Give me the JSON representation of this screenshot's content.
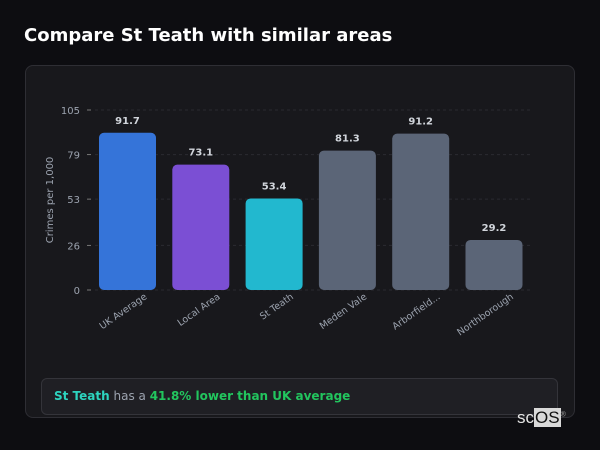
{
  "title": "Compare St Teath with similar areas",
  "chart_data": {
    "type": "bar",
    "categories": [
      "UK Average",
      "Local Area",
      "St Teath",
      "Meden Vale",
      "Arborfield...",
      "Northborough"
    ],
    "values": [
      91.7,
      73.1,
      53.4,
      81.3,
      91.2,
      29.2
    ],
    "colors": [
      "#3574d9",
      "#7b4fd4",
      "#22b8cf",
      "#5b6577",
      "#5b6577",
      "#5b6577"
    ],
    "ylabel": "Crimes per 1,000",
    "ylim": [
      0,
      105
    ],
    "yticks": [
      "0",
      "26",
      "53",
      "79",
      "105"
    ],
    "grid": true
  },
  "summary": {
    "place": "St Teath",
    "middle": " has a ",
    "difference": "41.8% lower than UK average"
  },
  "logo": {
    "text_a": "sc",
    "text_b": "OS",
    "mark": "®"
  }
}
